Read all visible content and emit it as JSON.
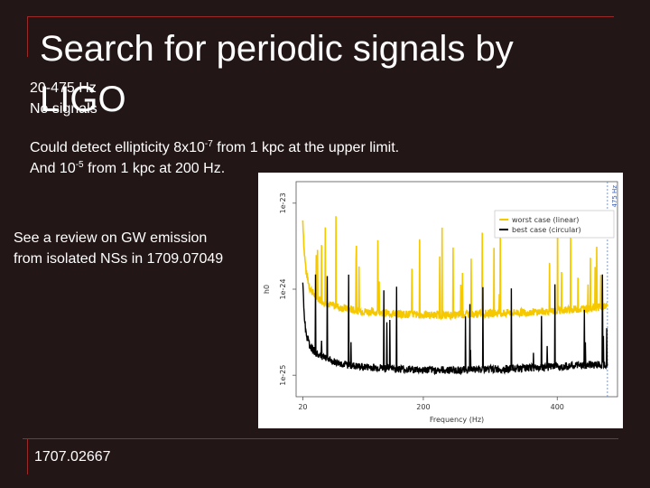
{
  "slide": {
    "title_line1": "Search for periodic signals by",
    "title_line2": "LIGO",
    "range": "20-475 Hz",
    "no_signals": "No signals",
    "detect_line1_a": "Could detect ellipticity 8x10",
    "detect_line1_exp": "-7",
    "detect_line1_b": " from 1 kpc at the upper limit.",
    "detect_line2_a": "And 10",
    "detect_line2_exp": "-5",
    "detect_line2_b": " from 1 kpc at 200 Hz.",
    "review_line1": "See a review on GW emission",
    "review_line2": "from isolated NSs in 1709.07049",
    "reference": "1707.02667"
  },
  "colors": {
    "background": "#231616",
    "frame": "#9a2a2a",
    "worst_case": "#f5c800",
    "best_case": "#000000"
  },
  "chart_data": {
    "type": "line",
    "xlabel": "Frequency (Hz)",
    "ylabel": "h0",
    "x_ticks": [
      20,
      200,
      400
    ],
    "y_ticks": [
      "1e-23",
      "1e-24",
      "1e-25"
    ],
    "y_log": true,
    "xlim": [
      10,
      490
    ],
    "ylim_log10": [
      -25.25,
      -22.75
    ],
    "vline_label": "475 Hz",
    "vline_x": 475,
    "legend_position": "top-right",
    "series": [
      {
        "name": "worst case (linear)",
        "color": "#f5c800",
        "x": [
          20,
          22,
          25,
          30,
          40,
          60,
          80,
          100,
          150,
          200,
          250,
          300,
          350,
          400,
          450,
          475
        ],
        "y_log10": [
          -23.2,
          -23.55,
          -23.8,
          -23.98,
          -24.1,
          -24.18,
          -24.22,
          -24.25,
          -24.28,
          -24.3,
          -24.3,
          -24.28,
          -24.27,
          -24.25,
          -24.22,
          -24.2
        ]
      },
      {
        "name": "best case (circular)",
        "color": "#000000",
        "x": [
          20,
          22,
          25,
          30,
          40,
          60,
          80,
          100,
          150,
          200,
          250,
          300,
          350,
          400,
          450,
          475
        ],
        "y_log10": [
          -23.9,
          -24.3,
          -24.52,
          -24.65,
          -24.75,
          -24.83,
          -24.87,
          -24.9,
          -24.92,
          -24.94,
          -24.94,
          -24.93,
          -24.92,
          -24.9,
          -24.88,
          -24.87
        ]
      }
    ]
  }
}
